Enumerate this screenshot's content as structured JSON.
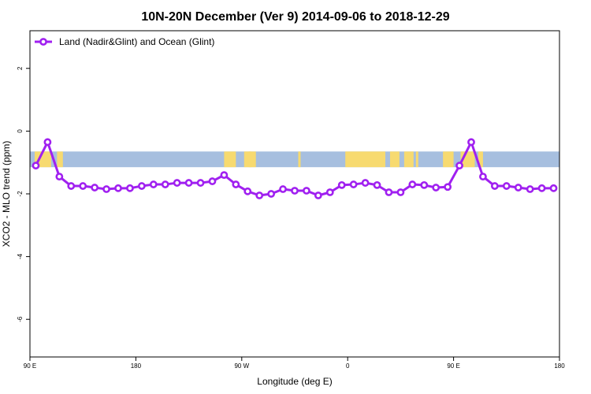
{
  "chart_data": {
    "type": "line",
    "title": "10N-20N December (Ver 9)   2014-09-06 to 2018-12-29",
    "xlabel": "Longitude (deg E)",
    "ylabel": "XCO2 - MLO trend (ppm)",
    "xlim": [
      90,
      540
    ],
    "ylim": [
      -7.2,
      3.2
    ],
    "x_ticks": [
      {
        "value": 90,
        "label": "90 E"
      },
      {
        "value": 180,
        "label": "180"
      },
      {
        "value": 270,
        "label": "90 W"
      },
      {
        "value": 360,
        "label": "0"
      },
      {
        "value": 450,
        "label": "90 E"
      },
      {
        "value": 540,
        "label": "180"
      }
    ],
    "y_ticks": [
      {
        "value": 2,
        "label": "2"
      },
      {
        "value": 0,
        "label": "0"
      },
      {
        "value": -2,
        "label": "-2"
      },
      {
        "value": -4,
        "label": "-4"
      },
      {
        "value": -6,
        "label": "-6"
      }
    ],
    "grid": false,
    "legend": {
      "position": "top-left",
      "entries": [
        "Land (Nadir&Glint) and Ocean (Glint)"
      ]
    },
    "series": [
      {
        "name": "Land (Nadir&Glint) and Ocean (Glint)",
        "color": "#a020f0",
        "x": [
          95,
          105,
          115,
          125,
          135,
          145,
          155,
          165,
          175,
          185,
          195,
          205,
          215,
          225,
          235,
          245,
          255,
          265,
          275,
          285,
          295,
          305,
          315,
          325,
          335,
          345,
          355,
          365,
          375,
          385,
          395,
          405,
          415,
          425,
          435,
          445,
          455,
          465,
          475,
          485,
          495,
          505,
          515,
          525,
          535
        ],
        "y": [
          -1.1,
          -0.35,
          -1.45,
          -1.75,
          -1.75,
          -1.8,
          -1.85,
          -1.82,
          -1.82,
          -1.75,
          -1.7,
          -1.7,
          -1.65,
          -1.65,
          -1.65,
          -1.6,
          -1.4,
          -1.7,
          -1.92,
          -2.05,
          -2.0,
          -1.85,
          -1.9,
          -1.9,
          -2.05,
          -1.95,
          -1.72,
          -1.7,
          -1.65,
          -1.72,
          -1.95,
          -1.95,
          -1.7,
          -1.72,
          -1.8,
          -1.78,
          -1.1,
          -0.35,
          -1.45,
          -1.75,
          -1.75,
          -1.8,
          -1.85,
          -1.82,
          -1.82
        ]
      }
    ],
    "map_strip": {
      "y_range": [
        -1.15,
        -0.65
      ],
      "ocean_color": "#a7bfdf",
      "land_color": "#f7da70",
      "land_segments": [
        [
          94,
          108
        ],
        [
          113,
          118
        ],
        [
          255,
          265
        ],
        [
          272,
          278
        ],
        [
          276,
          282
        ],
        [
          318,
          320
        ],
        [
          358,
          392
        ],
        [
          396,
          404
        ],
        [
          408,
          416
        ],
        [
          418,
          420
        ],
        [
          441,
          450
        ],
        [
          456,
          468
        ],
        [
          471,
          475
        ]
      ]
    }
  }
}
